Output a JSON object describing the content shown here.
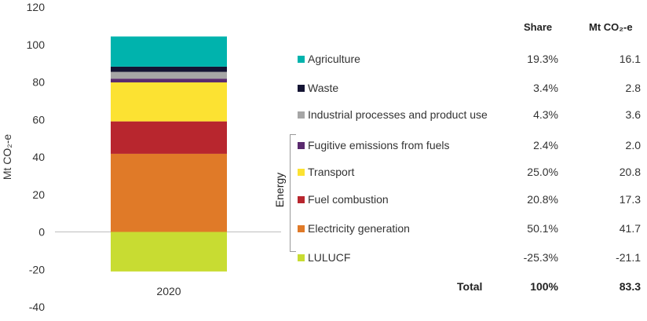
{
  "chart_data": {
    "type": "bar",
    "stacked": true,
    "categories": [
      "2020"
    ],
    "ylabel": "Mt CO₂-e",
    "ylim": [
      -40,
      120
    ],
    "yticks": [
      -40,
      -20,
      0,
      20,
      40,
      60,
      80,
      100,
      120
    ],
    "series": [
      {
        "name": "LULUCF",
        "values": [
          -21.1
        ],
        "color": "#c8dc32"
      },
      {
        "name": "Electricity generation",
        "values": [
          41.7
        ],
        "color": "#e07a28"
      },
      {
        "name": "Fuel combustion",
        "values": [
          17.3
        ],
        "color": "#b8262e"
      },
      {
        "name": "Transport",
        "values": [
          20.8
        ],
        "color": "#fce232"
      },
      {
        "name": "Fugitive emissions from fuels",
        "values": [
          2.0
        ],
        "color": "#5a2a6e"
      },
      {
        "name": "Industrial processes and product use",
        "values": [
          3.6
        ],
        "color": "#a6a6a6"
      },
      {
        "name": "Waste",
        "values": [
          2.8
        ],
        "color": "#141433"
      },
      {
        "name": "Agriculture",
        "values": [
          16.1
        ],
        "color": "#00b3ad"
      }
    ]
  },
  "table": {
    "share_header": "Share",
    "value_header": "Mt CO₂-e",
    "group_label": "Energy",
    "rows": [
      {
        "label": "Agriculture",
        "share": "19.3%",
        "value": "16.1",
        "color": "#00b3ad"
      },
      {
        "label": "Waste",
        "share": "3.4%",
        "value": "2.8",
        "color": "#141433"
      },
      {
        "label": "Industrial processes and product use",
        "share": "4.3%",
        "value": "3.6",
        "color": "#a6a6a6"
      },
      {
        "label": "Fugitive emissions from fuels",
        "share": "2.4%",
        "value": "2.0",
        "color": "#5a2a6e"
      },
      {
        "label": "Transport",
        "share": "25.0%",
        "value": "20.8",
        "color": "#fce232"
      },
      {
        "label": "Fuel combustion",
        "share": "20.8%",
        "value": "17.3",
        "color": "#b8262e"
      },
      {
        "label": "Electricity generation",
        "share": "50.1%",
        "value": "41.7",
        "color": "#e07a28"
      },
      {
        "label": "LULUCF",
        "share": "-25.3%",
        "value": "-21.1",
        "color": "#c8dc32"
      }
    ],
    "total": {
      "label": "Total",
      "share": "100%",
      "value": "83.3"
    }
  }
}
